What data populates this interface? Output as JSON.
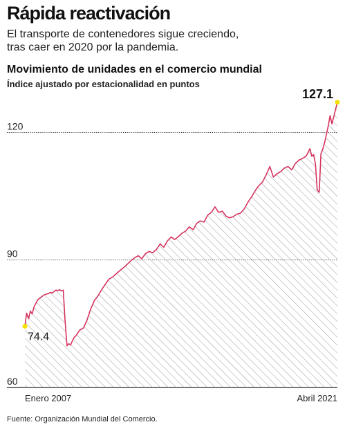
{
  "header": {
    "headline": "Rápida reactivación",
    "subtitle": "El transporte de contenedores sigue creciendo, tras caer en 2020 por la pandemia."
  },
  "footer": {
    "source": "Fuente: Organización Mundial del Comercio."
  },
  "colors": {
    "line": "#d6335d",
    "endpoint": "#f5e000",
    "hatch": "#9a9a9a",
    "grid": "#222222"
  },
  "chart_data": {
    "type": "area",
    "title": "Movimiento de unidades en el comercio mundial",
    "subtitle": "Índice ajustado por estacionalidad en puntos",
    "ylim": [
      60,
      130
    ],
    "yticks": [
      60,
      90,
      120
    ],
    "x_labels": {
      "start": "Enero 2007",
      "end": "Abril 2021"
    },
    "x_range": [
      2007.0,
      2021.25
    ],
    "point_labels": {
      "start": "74.4",
      "end": "127.1"
    },
    "grid": "horizontal",
    "series": [
      {
        "x": [
          2007.0,
          2007.08,
          2007.17,
          2007.25,
          2007.33,
          2007.42,
          2007.5,
          2007.58,
          2007.67,
          2007.75,
          2007.83,
          2007.92,
          2008.0,
          2008.08,
          2008.17,
          2008.25,
          2008.33,
          2008.42,
          2008.5,
          2008.58,
          2008.67,
          2008.75,
          2008.83,
          2008.92,
          2009.0,
          2009.08,
          2009.17,
          2009.25,
          2009.33,
          2009.5,
          2009.67,
          2009.83,
          2010.0,
          2010.17,
          2010.33,
          2010.5,
          2010.67,
          2010.83,
          2011.0,
          2011.17,
          2011.33,
          2011.5,
          2011.67,
          2011.83,
          2012.0,
          2012.17,
          2012.33,
          2012.5,
          2012.67,
          2012.83,
          2013.0,
          2013.17,
          2013.33,
          2013.5,
          2013.67,
          2013.83,
          2014.0,
          2014.17,
          2014.33,
          2014.5,
          2014.67,
          2014.83,
          2015.0,
          2015.17,
          2015.33,
          2015.5,
          2015.67,
          2015.83,
          2016.0,
          2016.17,
          2016.33,
          2016.5,
          2016.67,
          2016.83,
          2017.0,
          2017.17,
          2017.33,
          2017.5,
          2017.67,
          2017.83,
          2018.0,
          2018.17,
          2018.33,
          2018.5,
          2018.67,
          2018.83,
          2019.0,
          2019.17,
          2019.33,
          2019.5,
          2019.67,
          2019.83,
          2020.0,
          2020.08,
          2020.17,
          2020.25,
          2020.33,
          2020.42,
          2020.5,
          2020.58,
          2020.67,
          2020.75,
          2020.83,
          2020.92,
          2021.0,
          2021.08,
          2021.17,
          2021.25
        ],
        "y": [
          74.4,
          77.5,
          76.2,
          78.0,
          77.3,
          79.0,
          79.8,
          80.6,
          81.0,
          81.3,
          81.6,
          81.9,
          82.0,
          82.1,
          82.4,
          82.2,
          82.6,
          82.9,
          82.8,
          83.0,
          82.7,
          82.9,
          76.0,
          69.8,
          70.3,
          70.0,
          71.0,
          71.8,
          72.2,
          73.5,
          74.0,
          75.8,
          78.5,
          80.5,
          81.5,
          83.0,
          84.3,
          85.5,
          86.0,
          86.8,
          87.5,
          88.2,
          89.0,
          89.8,
          90.5,
          91.0,
          90.3,
          91.5,
          92.0,
          91.7,
          92.5,
          93.8,
          93.0,
          94.5,
          95.4,
          94.8,
          95.5,
          96.3,
          96.8,
          97.8,
          97.1,
          98.6,
          99.2,
          98.9,
          100.5,
          101.2,
          102.5,
          101.2,
          101.5,
          100.3,
          99.9,
          100.2,
          100.8,
          101.0,
          102.0,
          103.6,
          104.8,
          106.3,
          107.5,
          108.3,
          110.0,
          112.0,
          109.5,
          110.3,
          110.8,
          111.6,
          112.0,
          111.2,
          112.7,
          113.5,
          113.9,
          114.5,
          116.2,
          114.4,
          114.8,
          112.5,
          106.5,
          105.9,
          115.0,
          116.0,
          117.7,
          119.5,
          121.5,
          124.0,
          122.0,
          123.6,
          125.5,
          127.1
        ],
        "smoothing": false
      }
    ]
  }
}
